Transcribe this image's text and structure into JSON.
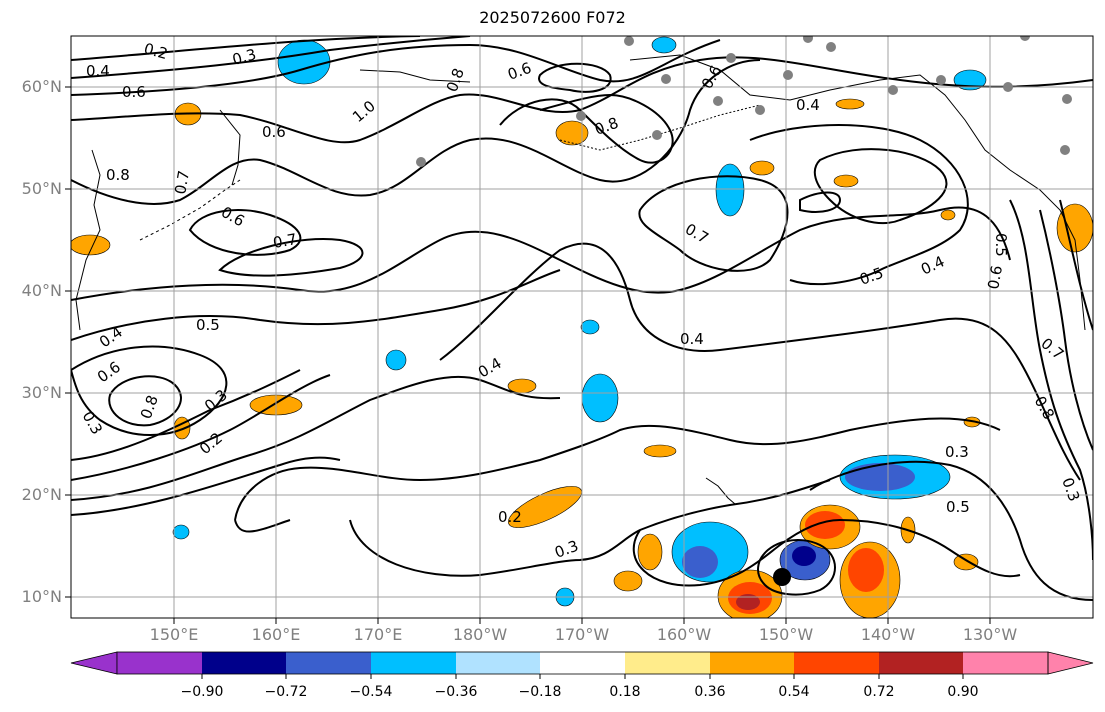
{
  "title": "2025072600 F072",
  "lat_labels": [
    "60°N",
    "50°N",
    "40°N",
    "30°N",
    "20°N",
    "10°N"
  ],
  "lon_labels": [
    "150°E",
    "160°E",
    "170°E",
    "180°W",
    "170°W",
    "160°W",
    "150°W",
    "140°W",
    "130°W"
  ],
  "colorbar": {
    "ticks": [
      "−0.90",
      "−0.72",
      "−0.54",
      "−0.36",
      "−0.18",
      "0.18",
      "0.36",
      "0.54",
      "0.72",
      "0.90"
    ],
    "colors": [
      "#9932cc",
      "#00008b",
      "#3a5fcd",
      "#00bfff",
      "#b0e2ff",
      "#ffffff",
      "#ffec8b",
      "#ffa500",
      "#ff4500",
      "#b22222",
      "#ff82ab"
    ]
  },
  "contour_labels": [
    "0.2",
    "0.3",
    "0.4",
    "0.5",
    "0.6",
    "0.7",
    "0.8",
    "1.0"
  ],
  "storm_marker": {
    "lon": "150°W",
    "lat": "12°N"
  },
  "colors": {
    "contour": "#000000",
    "grid": "#a0a0a0",
    "land": "#ffffff",
    "station": "#808080"
  }
}
